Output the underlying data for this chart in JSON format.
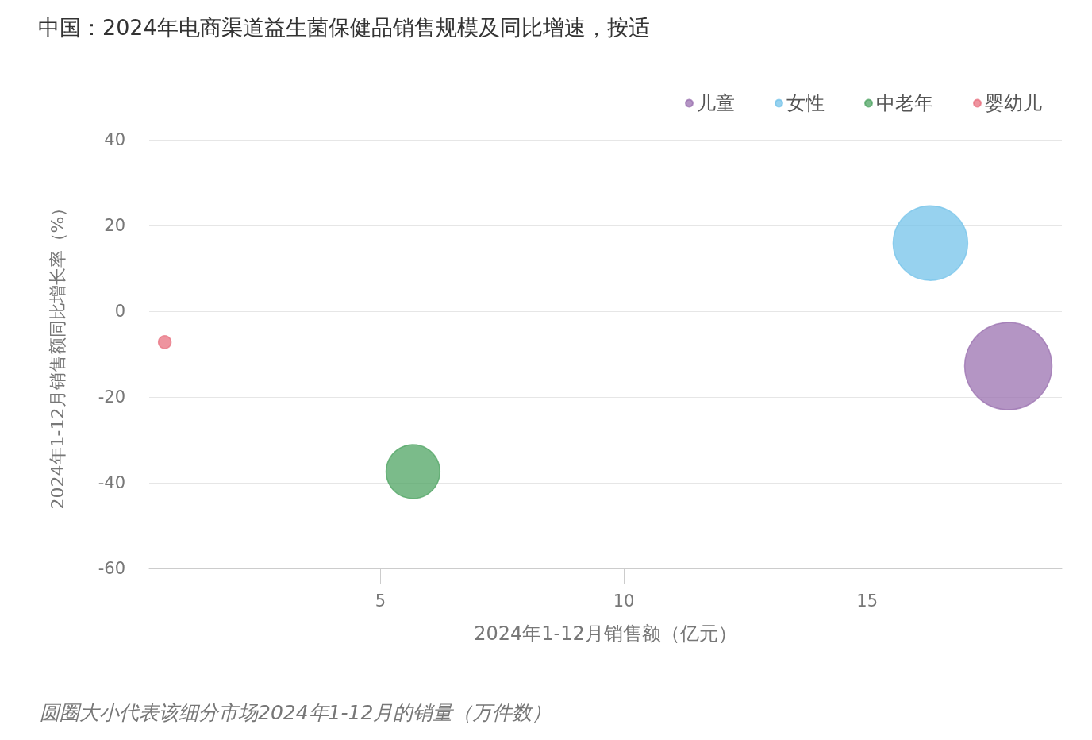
{
  "chart_data": {
    "type": "bubble",
    "title": "中国：2024年电商渠道益生菌保健品销售规模及同比增速，按适",
    "xlabel": "2024年1-12月销售额（亿元）",
    "ylabel": "2024年1-12月销售额同比增长率（%）",
    "annotations": [
      "圆圈大小代表该细分市场2024年1-12月的销量（万件数）"
    ],
    "series": [
      {
        "name": "儿童",
        "color": "#9b72b0",
        "x": [
          17.9
        ],
        "values": [
          -12.8
        ],
        "sizes": [
          1
        ]
      },
      {
        "name": "女性",
        "color": "#74c3ea",
        "x": [
          16.3
        ],
        "values": [
          15.9
        ],
        "sizes": [
          0.73
        ]
      },
      {
        "name": "中老年",
        "color": "#4fa463",
        "x": [
          5.67
        ],
        "values": [
          -37.4
        ],
        "sizes": [
          0.38
        ]
      },
      {
        "name": "婴幼儿",
        "color": "#e8707f",
        "x": [
          0.57
        ],
        "values": [
          -7.2
        ],
        "sizes": [
          0.021
        ]
      }
    ],
    "xlim": [
      0.25,
      19
    ],
    "xticks": [
      5,
      10,
      15
    ],
    "ylim": [
      -60,
      40
    ],
    "yticks": [
      -60,
      -40,
      -20,
      0,
      20,
      40
    ],
    "grid": "y",
    "legend": "top right",
    "marker": "circle"
  }
}
